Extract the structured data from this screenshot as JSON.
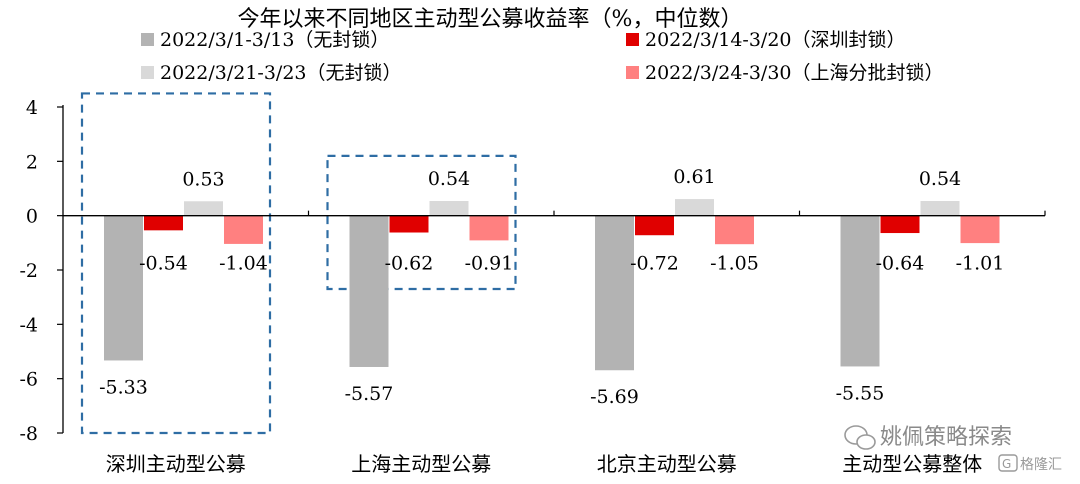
{
  "chart_data": {
    "type": "bar",
    "title": "今年以来不同地区主动型公募收益率（%，中位数）",
    "categories": [
      "深圳主动型公募",
      "上海主动型公募",
      "北京主动型公募",
      "主动型公募整体"
    ],
    "series": [
      {
        "name": "2022/3/1-3/13（无封锁）",
        "values": [
          -5.33,
          -5.57,
          -5.69,
          -5.55
        ],
        "color": "#b3b3b3"
      },
      {
        "name": "2022/3/14-3/20（深圳封锁）",
        "values": [
          -0.54,
          -0.62,
          -0.72,
          -0.64
        ],
        "color": "#e00000"
      },
      {
        "name": "2022/3/21-3/23（无封锁）",
        "values": [
          0.53,
          0.54,
          0.61,
          0.54
        ],
        "color": "#d9d9d9"
      },
      {
        "name": "2022/3/24-3/30（上海分批封锁）",
        "values": [
          -1.04,
          -0.91,
          -1.05,
          -1.01
        ],
        "color": "#ff8080"
      }
    ],
    "data_labels": [
      [
        "-5.33",
        "-0.54",
        "0.53",
        "-1.04"
      ],
      [
        "-5.57",
        "-0.62",
        "0.54",
        "-0.91"
      ],
      [
        "-5.69",
        "-0.72",
        "0.61",
        "-1.05"
      ],
      [
        "-5.55",
        "-0.64",
        "0.54",
        "-1.01"
      ]
    ],
    "yticks": [
      "4",
      "2",
      "0",
      "-2",
      "-4",
      "-6",
      "-8"
    ],
    "ylim": [
      -8,
      4
    ],
    "xlabel": "",
    "ylabel": "",
    "legend_position": "top",
    "grid": false,
    "highlight_boxes": [
      {
        "category_index": 0,
        "y_range": [
          -8,
          4.5
        ]
      },
      {
        "category_index": 1,
        "y_range": [
          -2.7,
          2.2
        ]
      }
    ]
  },
  "watermark": {
    "primary": "姚佩策略探索",
    "secondary": "格隆汇"
  }
}
